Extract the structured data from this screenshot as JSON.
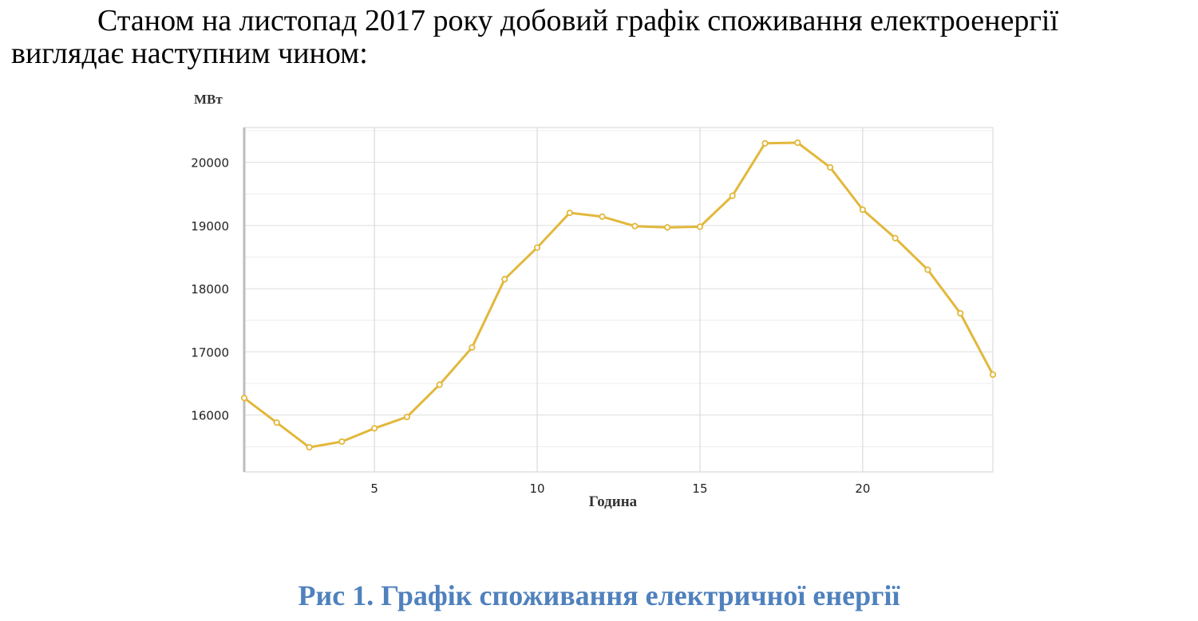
{
  "document": {
    "paragraph_line1": "Станом на листопад 2017 року добовий графік споживання електроенергії",
    "paragraph_line2": "виглядає наступним чином:",
    "caption": "Рис 1. Графік споживання електричної енергії"
  },
  "chart_data": {
    "type": "line",
    "title": "",
    "xlabel": "Година",
    "ylabel": "МВт",
    "xlim": [
      1,
      24
    ],
    "ylim": [
      15100,
      20550
    ],
    "x_ticks": [
      5,
      10,
      15,
      20
    ],
    "y_ticks": [
      16000,
      17000,
      18000,
      19000,
      20000
    ],
    "grid": true,
    "series_color": "#e2b83c",
    "series": [
      {
        "x": [
          1,
          2,
          3,
          4,
          5,
          6,
          7,
          8,
          9,
          10,
          11,
          12,
          13,
          14,
          15,
          16,
          17,
          18,
          19,
          20,
          21,
          22,
          23,
          24
        ],
        "values": [
          16270,
          15880,
          15490,
          15580,
          15790,
          15970,
          16480,
          17070,
          18150,
          18650,
          19200,
          19140,
          18990,
          18970,
          18980,
          19470,
          20300,
          20310,
          19920,
          19250,
          18800,
          18300,
          17610,
          16640
        ]
      }
    ]
  }
}
